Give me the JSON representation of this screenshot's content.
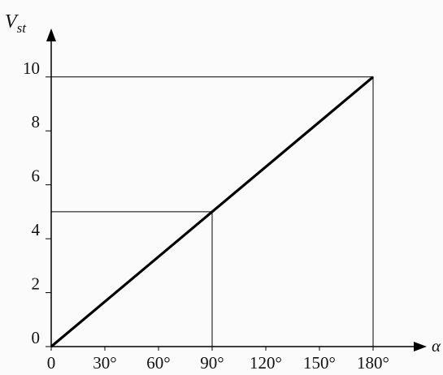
{
  "chart_data": {
    "type": "line",
    "y_label": [
      "V",
      "st"
    ],
    "x_label": "α",
    "x": [
      0,
      90,
      180
    ],
    "series": [
      {
        "color": "#000000",
        "values": [
          0,
          5,
          10
        ]
      }
    ],
    "xlim": [
      0,
      210
    ],
    "ylim": [
      0,
      11.8
    ],
    "xticks": [
      0,
      {
        "value": 30,
        "label": "30°"
      },
      {
        "value": 60,
        "label": "60°"
      },
      {
        "value": 90,
        "label": "90°"
      },
      {
        "value": 120,
        "label": "120°"
      },
      {
        "value": 150,
        "label": "150°"
      },
      {
        "value": 180,
        "label": "180°"
      }
    ],
    "yticks": [
      0,
      2,
      4,
      6,
      8,
      10
    ],
    "guides": true
  }
}
